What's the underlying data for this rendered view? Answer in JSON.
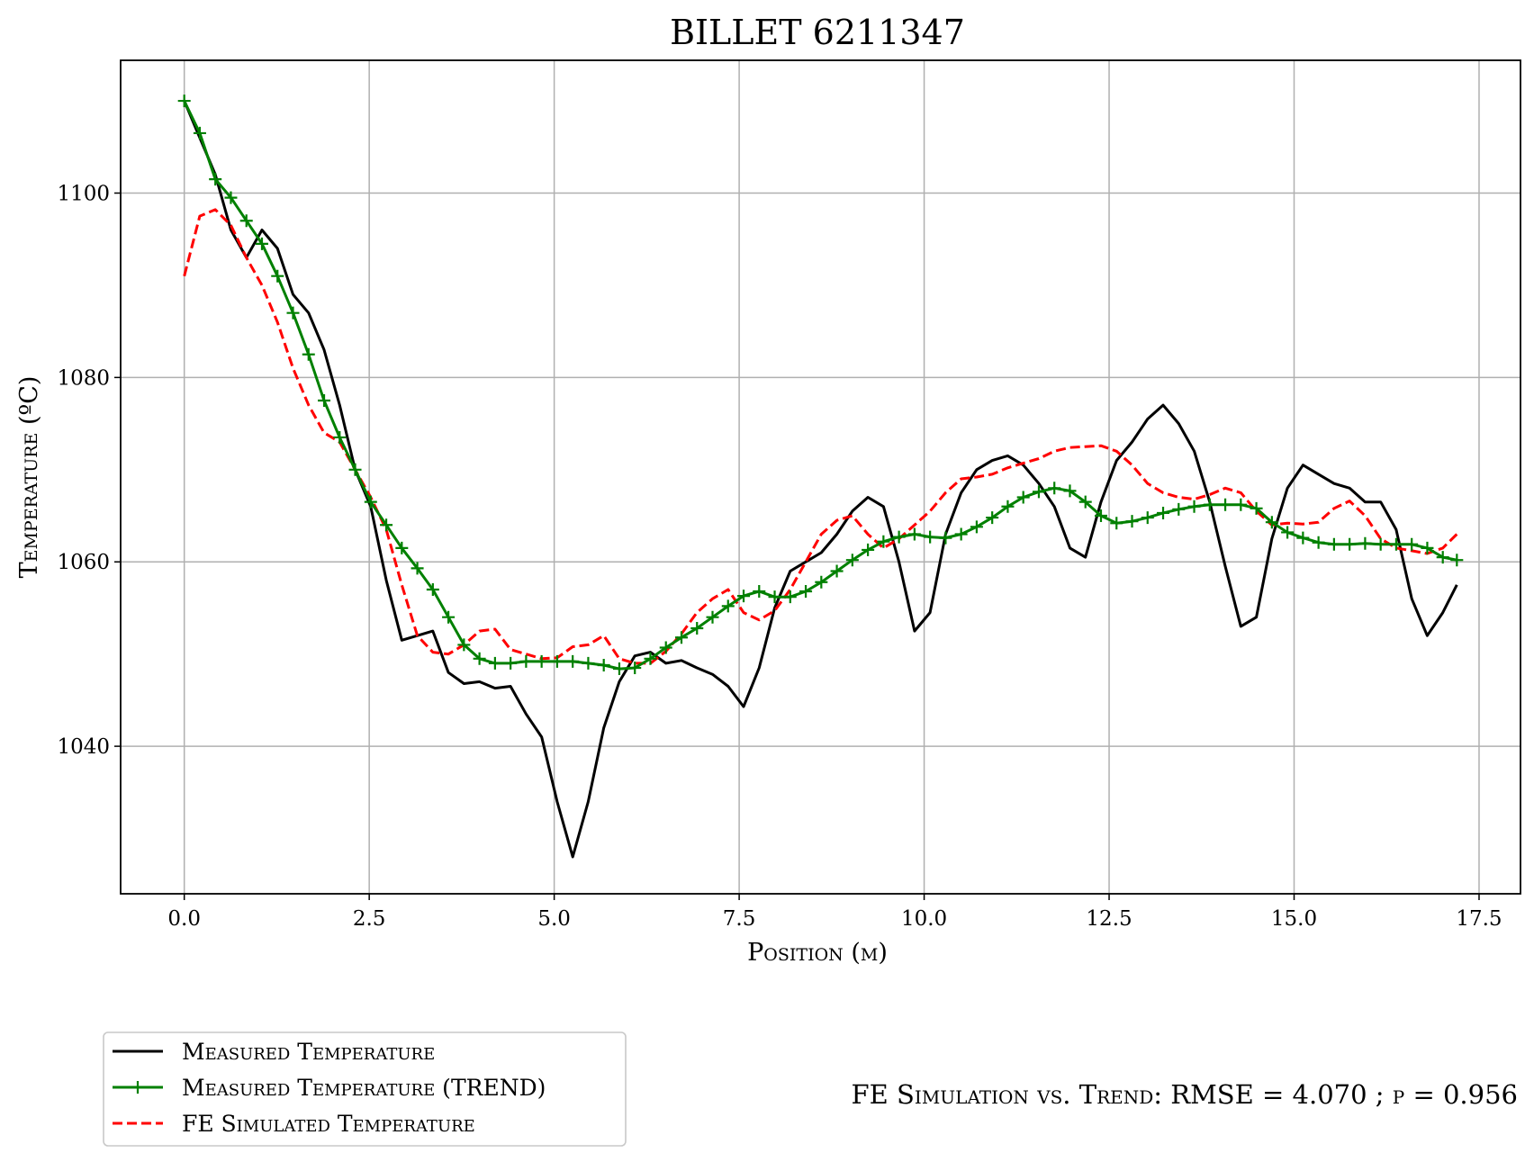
{
  "chart_data": {
    "type": "line",
    "title": "BILLET 6211347",
    "xlabel": "Position (m)",
    "ylabel": "Temperature (ºC)",
    "xlim": [
      -0.86,
      18.06
    ],
    "ylim": [
      1024,
      1114.4
    ],
    "xticks": [
      "0.0",
      "2.5",
      "5.0",
      "7.5",
      "10.0",
      "12.5",
      "15.0",
      "17.5"
    ],
    "xtick_values": [
      0,
      2.5,
      5,
      7.5,
      10,
      12.5,
      15,
      17.5
    ],
    "yticks": [
      "1040",
      "1060",
      "1080",
      "1100"
    ],
    "ytick_values": [
      1040,
      1060,
      1080,
      1100
    ],
    "grid": true,
    "legend_position": "below-left",
    "annotation": "FE Simulation vs. Trend: RMSE = 4.070 ; ρ = 0.956",
    "series": [
      {
        "name": "Measured Temperature",
        "color": "#000000",
        "style": "solid",
        "x": [
          0,
          0.21,
          0.42,
          0.63,
          0.84,
          1.05,
          1.26,
          1.47,
          1.68,
          1.89,
          2.1,
          2.31,
          2.52,
          2.73,
          2.94,
          3.15,
          3.36,
          3.57,
          3.78,
          3.99,
          4.2,
          4.41,
          4.62,
          4.83,
          5.04,
          5.25,
          5.46,
          5.67,
          5.88,
          6.09,
          6.3,
          6.51,
          6.72,
          6.93,
          7.14,
          7.35,
          7.56,
          7.77,
          7.98,
          8.19,
          8.4,
          8.61,
          8.82,
          9.03,
          9.24,
          9.45,
          9.66,
          9.87,
          10.08,
          10.29,
          10.5,
          10.71,
          10.92,
          11.13,
          11.34,
          11.55,
          11.76,
          11.97,
          12.18,
          12.39,
          12.6,
          12.81,
          13.02,
          13.23,
          13.44,
          13.65,
          13.86,
          14.07,
          14.28,
          14.49,
          14.7,
          14.91,
          15.12,
          15.33,
          15.54,
          15.75,
          15.96,
          16.17,
          16.38,
          16.59,
          16.8,
          17.01,
          17.2
        ],
        "y": [
          1110,
          1106,
          1102,
          1096,
          1093,
          1096,
          1094,
          1089,
          1087,
          1083,
          1077,
          1070,
          1066,
          1058,
          1051.5,
          1052,
          1052.5,
          1048,
          1046.8,
          1047,
          1046.3,
          1046.5,
          1043.5,
          1041,
          1034,
          1028,
          1034,
          1042,
          1047,
          1049.8,
          1050.2,
          1049,
          1049.3,
          1048.5,
          1047.8,
          1046.5,
          1044.3,
          1048.5,
          1055,
          1059,
          1060,
          1061,
          1063,
          1065.5,
          1067,
          1066,
          1060,
          1052.5,
          1054.5,
          1063,
          1067.5,
          1070,
          1071,
          1071.5,
          1070.5,
          1068.5,
          1066,
          1061.5,
          1060.5,
          1066.5,
          1071,
          1073,
          1075.5,
          1077,
          1075,
          1072,
          1066.5,
          1059.5,
          1053,
          1054,
          1062.5,
          1068,
          1070.5,
          1069.5,
          1068.5,
          1068,
          1066.5,
          1066.5,
          1063.5,
          1056,
          1052,
          1054.5,
          1057.5
        ]
      },
      {
        "name": "Measured Temperature (TREND)",
        "color": "#008000",
        "style": "solid-plus",
        "x": [
          0,
          0.21,
          0.42,
          0.63,
          0.84,
          1.05,
          1.26,
          1.47,
          1.68,
          1.89,
          2.1,
          2.31,
          2.52,
          2.73,
          2.94,
          3.15,
          3.36,
          3.57,
          3.78,
          3.99,
          4.2,
          4.41,
          4.62,
          4.83,
          5.04,
          5.25,
          5.46,
          5.67,
          5.88,
          6.09,
          6.3,
          6.51,
          6.72,
          6.93,
          7.14,
          7.35,
          7.56,
          7.77,
          7.98,
          8.19,
          8.4,
          8.61,
          8.82,
          9.03,
          9.24,
          9.45,
          9.66,
          9.87,
          10.08,
          10.29,
          10.5,
          10.71,
          10.92,
          11.13,
          11.34,
          11.55,
          11.76,
          11.97,
          12.18,
          12.39,
          12.6,
          12.81,
          13.02,
          13.23,
          13.44,
          13.65,
          13.86,
          14.07,
          14.28,
          14.49,
          14.7,
          14.91,
          15.12,
          15.33,
          15.54,
          15.75,
          15.96,
          16.17,
          16.38,
          16.59,
          16.8,
          17.01,
          17.2
        ],
        "y": [
          1110,
          1106.5,
          1101.5,
          1099.5,
          1097,
          1094.5,
          1091,
          1087,
          1082.5,
          1077.5,
          1073.5,
          1070,
          1066.5,
          1064,
          1061.5,
          1059.3,
          1057,
          1054,
          1051,
          1049.5,
          1049,
          1049,
          1049.2,
          1049.2,
          1049.2,
          1049.2,
          1049,
          1048.8,
          1048.4,
          1048.5,
          1049.5,
          1050.7,
          1051.8,
          1052.8,
          1054,
          1055.2,
          1056.3,
          1056.8,
          1056.2,
          1056.2,
          1056.8,
          1057.8,
          1059,
          1060.2,
          1061.3,
          1062.2,
          1062.7,
          1063,
          1062.7,
          1062.6,
          1063,
          1063.8,
          1064.8,
          1066,
          1067,
          1067.6,
          1068,
          1067.7,
          1066.5,
          1065,
          1064.2,
          1064.4,
          1064.8,
          1065.3,
          1065.7,
          1066,
          1066.2,
          1066.2,
          1066.2,
          1065.8,
          1064.3,
          1063.2,
          1062.6,
          1062.1,
          1061.9,
          1061.9,
          1062,
          1061.9,
          1061.9,
          1061.9,
          1061.5,
          1060.5,
          1060.2
        ]
      },
      {
        "name": "FE Simulated Temperature",
        "color": "#ff0000",
        "style": "dashed",
        "x": [
          0,
          0.21,
          0.42,
          0.63,
          0.84,
          1.05,
          1.26,
          1.47,
          1.68,
          1.89,
          2.1,
          2.31,
          2.52,
          2.73,
          2.94,
          3.15,
          3.36,
          3.57,
          3.78,
          3.99,
          4.2,
          4.41,
          4.62,
          4.83,
          5.04,
          5.25,
          5.46,
          5.67,
          5.88,
          6.09,
          6.3,
          6.51,
          6.72,
          6.93,
          7.14,
          7.35,
          7.56,
          7.77,
          7.98,
          8.19,
          8.4,
          8.61,
          8.82,
          9.03,
          9.24,
          9.45,
          9.66,
          9.87,
          10.08,
          10.29,
          10.5,
          10.71,
          10.92,
          11.13,
          11.34,
          11.55,
          11.76,
          11.97,
          12.18,
          12.39,
          12.6,
          12.81,
          13.02,
          13.23,
          13.44,
          13.65,
          13.86,
          14.07,
          14.28,
          14.49,
          14.7,
          14.91,
          15.12,
          15.33,
          15.54,
          15.75,
          15.96,
          16.17,
          16.38,
          16.59,
          16.8,
          17.01,
          17.2
        ],
        "y": [
          1091,
          1097.5,
          1098.2,
          1096.5,
          1093,
          1090,
          1086,
          1081,
          1077,
          1074,
          1073,
          1070,
          1067,
          1063.5,
          1057.5,
          1052,
          1050.2,
          1050,
          1051,
          1052.5,
          1052.7,
          1050.5,
          1050,
          1049.5,
          1049.6,
          1050.8,
          1051,
          1052,
          1049.5,
          1049,
          1049,
          1050.3,
          1052.2,
          1054.5,
          1056,
          1057,
          1054.5,
          1053.7,
          1054.7,
          1057,
          1060,
          1063,
          1064.5,
          1065,
          1063,
          1061.5,
          1062.5,
          1064,
          1065.5,
          1067.5,
          1069,
          1069.2,
          1069.5,
          1070.2,
          1070.7,
          1071.2,
          1072,
          1072.4,
          1072.5,
          1072.6,
          1072,
          1070.5,
          1068.5,
          1067.5,
          1067,
          1066.8,
          1067.3,
          1068,
          1067.5,
          1065.5,
          1064,
          1064.2,
          1064.1,
          1064.3,
          1065.8,
          1066.6,
          1065,
          1062.5,
          1061.5,
          1061.2,
          1060.9,
          1061.5,
          1063
        ]
      }
    ]
  }
}
